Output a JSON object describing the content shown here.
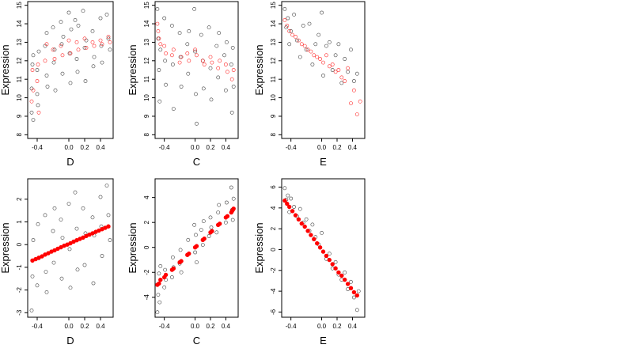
{
  "chart_data": [
    {
      "type": "scatter",
      "xlabel": "D",
      "ylabel": "Expression",
      "xlim": [
        -0.52,
        0.56
      ],
      "ylim": [
        7.8,
        15.2
      ],
      "xticks": [
        -0.4,
        0,
        0.2,
        0.4
      ],
      "xtick_labels": [
        "-0.4",
        "0.0",
        "0.2",
        "0.4"
      ],
      "yticks": [
        8,
        9,
        10,
        11,
        12,
        13,
        14,
        15
      ],
      "ytick_labels": [
        "8",
        "9",
        "10",
        "11",
        "12",
        "13",
        "14",
        "15"
      ],
      "series": [
        {
          "color": "#000000",
          "marker": "open-circle",
          "x": [
            -0.47,
            -0.47,
            -0.46,
            -0.45,
            -0.45,
            -0.4,
            -0.4,
            -0.39,
            -0.38,
            -0.3,
            -0.28,
            -0.28,
            -0.27,
            -0.2,
            -0.19,
            -0.18,
            -0.17,
            -0.1,
            -0.09,
            -0.08,
            -0.07,
            0,
            0.01,
            0.02,
            0.03,
            0.08,
            0.1,
            0.11,
            0.12,
            0.18,
            0.2,
            0.21,
            0.22,
            0.3,
            0.31,
            0.32,
            0.4,
            0.41,
            0.42,
            0.48,
            0.5,
            0.52
          ],
          "y": [
            9.2,
            10.5,
            11.8,
            8.8,
            12.3,
            10.2,
            11.5,
            9.6,
            12.5,
            12.8,
            11.2,
            13.5,
            10.6,
            13.8,
            11.9,
            12.6,
            10.4,
            14.1,
            12.9,
            11.3,
            13.3,
            14.6,
            12.4,
            10.8,
            13.7,
            14.2,
            12.1,
            11.4,
            13.9,
            14.7,
            12.7,
            10.9,
            13.1,
            13.6,
            11.7,
            12.2,
            14.3,
            12.8,
            11.9,
            14.5,
            13.2,
            12.6
          ]
        },
        {
          "color": "#ff0000",
          "marker": "open-circle",
          "x": [
            -0.47,
            -0.46,
            -0.45,
            -0.4,
            -0.39,
            -0.38,
            -0.3,
            -0.28,
            -0.2,
            -0.18,
            -0.1,
            -0.08,
            0,
            0.02,
            0.1,
            0.12,
            0.2,
            0.22,
            0.3,
            0.32,
            0.4,
            0.42,
            0.5,
            0.52
          ],
          "y": [
            9.8,
            11.5,
            10.4,
            10.9,
            11.8,
            9.2,
            12.0,
            12.9,
            12.6,
            12.1,
            12.8,
            12.3,
            13.1,
            12.4,
            13.0,
            12.6,
            13.2,
            12.7,
            13.0,
            12.8,
            13.1,
            12.9,
            13.3,
            13.0
          ]
        }
      ]
    },
    {
      "type": "scatter",
      "xlabel": "C",
      "ylabel": "Expression",
      "xlim": [
        -0.52,
        0.56
      ],
      "ylim": [
        7.8,
        15.2
      ],
      "xticks": [
        -0.4,
        0,
        0.2,
        0.4
      ],
      "xtick_labels": [
        "-0.4",
        "0.0",
        "0.2",
        "0.4"
      ],
      "yticks": [
        8,
        9,
        10,
        11,
        12,
        13,
        14,
        15
      ],
      "ytick_labels": [
        "8",
        "9",
        "10",
        "11",
        "12",
        "13",
        "14",
        "15"
      ],
      "series": [
        {
          "color": "#000000",
          "marker": "open-circle",
          "x": [
            -0.49,
            -0.48,
            -0.47,
            -0.46,
            -0.45,
            -0.4,
            -0.39,
            -0.38,
            -0.3,
            -0.29,
            -0.28,
            -0.2,
            -0.19,
            -0.18,
            -0.1,
            -0.09,
            -0.08,
            -0.01,
            0,
            0.01,
            0.02,
            0.08,
            0.1,
            0.11,
            0.18,
            0.2,
            0.21,
            0.28,
            0.3,
            0.31,
            0.38,
            0.4,
            0.41,
            0.47,
            0.48,
            0.49,
            0.5
          ],
          "y": [
            14.8,
            13.2,
            11.5,
            9.8,
            12.6,
            14.3,
            12.0,
            10.7,
            13.9,
            11.8,
            9.4,
            13.5,
            12.2,
            10.6,
            12.9,
            11.3,
            13.6,
            14.8,
            12.5,
            10.2,
            8.6,
            13.4,
            12.0,
            10.5,
            13.8,
            11.6,
            9.9,
            12.8,
            11.1,
            13.5,
            12.3,
            10.4,
            13.0,
            11.8,
            9.2,
            12.7,
            10.6
          ]
        },
        {
          "color": "#ff0000",
          "marker": "open-circle",
          "x": [
            -0.49,
            -0.48,
            -0.47,
            -0.45,
            -0.4,
            -0.38,
            -0.3,
            -0.28,
            -0.2,
            -0.18,
            -0.1,
            -0.08,
            0,
            0.02,
            0.1,
            0.12,
            0.2,
            0.22,
            0.3,
            0.32,
            0.4,
            0.42,
            0.48,
            0.5
          ],
          "y": [
            14.0,
            13.6,
            13.2,
            12.9,
            12.8,
            12.4,
            12.3,
            12.6,
            11.9,
            12.2,
            12.4,
            12.0,
            12.6,
            12.3,
            12.0,
            11.8,
            12.2,
            11.9,
            11.6,
            12.0,
            11.8,
            11.4,
            11.0,
            11.5
          ]
        }
      ]
    },
    {
      "type": "scatter",
      "xlabel": "E",
      "ylabel": "Expression",
      "xlim": [
        -0.52,
        0.56
      ],
      "ylim": [
        7.8,
        15.2
      ],
      "xticks": [
        -0.4,
        0,
        0.2,
        0.4
      ],
      "xtick_labels": [
        "-0.4",
        "0.0",
        "0.2",
        "0.4"
      ],
      "yticks": [
        8,
        9,
        10,
        11,
        12,
        13,
        14,
        15
      ],
      "ytick_labels": [
        "8",
        "9",
        "10",
        "11",
        "12",
        "13",
        "14",
        "15"
      ],
      "series": [
        {
          "color": "#000000",
          "marker": "open-circle",
          "x": [
            -0.48,
            -0.46,
            -0.44,
            -0.42,
            -0.4,
            -0.36,
            -0.32,
            -0.28,
            -0.24,
            -0.2,
            -0.16,
            -0.12,
            -0.08,
            -0.04,
            0,
            0.02,
            0.06,
            0.1,
            0.14,
            0.18,
            0.22,
            0.26,
            0.3,
            0.34,
            0.38,
            0.42,
            0.46
          ],
          "y": [
            14.8,
            13.8,
            14.3,
            12.9,
            13.6,
            14.5,
            13.1,
            12.2,
            13.9,
            12.6,
            14.0,
            11.8,
            12.9,
            13.4,
            14.6,
            11.2,
            12.8,
            13.0,
            11.5,
            12.3,
            12.9,
            10.8,
            12.1,
            11.4,
            12.6,
            10.9,
            11.3
          ]
        },
        {
          "color": "#ff0000",
          "marker": "open-circle",
          "x": [
            -0.48,
            -0.45,
            -0.42,
            -0.38,
            -0.34,
            -0.3,
            -0.26,
            -0.22,
            -0.18,
            -0.14,
            -0.1,
            -0.06,
            -0.02,
            0.02,
            0.06,
            0.1,
            0.14,
            0.18,
            0.22,
            0.26,
            0.3,
            0.34,
            0.38,
            0.42,
            0.46,
            0.5
          ],
          "y": [
            14.2,
            13.9,
            13.6,
            13.4,
            13.3,
            13.1,
            12.9,
            12.8,
            12.6,
            12.5,
            12.3,
            12.2,
            12.1,
            11.9,
            12.3,
            11.7,
            11.8,
            11.4,
            11.5,
            11.1,
            10.9,
            11.6,
            9.7,
            10.4,
            9.1,
            9.8
          ]
        }
      ]
    },
    {
      "type": "scatter",
      "xlabel": "D",
      "ylabel": "Expression",
      "xlim": [
        -0.52,
        0.56
      ],
      "ylim": [
        -3.2,
        2.9
      ],
      "xticks": [
        -0.4,
        0,
        0.2,
        0.4
      ],
      "xtick_labels": [
        "-0.4",
        "0.0",
        "0.2",
        "0.4"
      ],
      "yticks": [
        -3,
        -2,
        -1,
        0,
        1,
        2
      ],
      "ytick_labels": [
        "-3",
        "-2",
        "-1",
        "0",
        "1",
        "2"
      ],
      "series": [
        {
          "color": "#000000",
          "marker": "open-circle",
          "x": [
            -0.47,
            -0.46,
            -0.45,
            -0.4,
            -0.39,
            -0.38,
            -0.3,
            -0.29,
            -0.28,
            -0.2,
            -0.19,
            -0.18,
            -0.1,
            -0.09,
            -0.08,
            0,
            0.01,
            0.02,
            0.08,
            0.1,
            0.11,
            0.18,
            0.2,
            0.21,
            0.3,
            0.31,
            0.32,
            0.4,
            0.41,
            0.42,
            0.48,
            0.5,
            0.52
          ],
          "y": [
            -2.9,
            -1.4,
            0.2,
            -1.8,
            0.9,
            -0.6,
            1.3,
            -1.2,
            -2.1,
            0.6,
            -0.8,
            1.6,
            1.1,
            -1.5,
            0.3,
            1.8,
            -0.2,
            -1.9,
            2.3,
            0.7,
            -1.1,
            1.6,
            -0.9,
            0.5,
            1.2,
            -1.7,
            0.4,
            2.1,
            0.8,
            -0.5,
            2.6,
            1.3,
            0.2
          ]
        },
        {
          "color": "#ff0000",
          "marker": "filled-circle",
          "x": [
            -0.46,
            -0.42,
            -0.38,
            -0.34,
            -0.3,
            -0.26,
            -0.22,
            -0.18,
            -0.14,
            -0.1,
            -0.06,
            -0.02,
            0.02,
            0.06,
            0.1,
            0.14,
            0.18,
            0.22,
            0.26,
            0.3,
            0.34,
            0.38,
            0.42,
            0.46,
            0.5
          ],
          "y": [
            -0.7,
            -0.64,
            -0.58,
            -0.52,
            -0.44,
            -0.38,
            -0.31,
            -0.25,
            -0.18,
            -0.12,
            -0.05,
            0.0,
            0.06,
            0.13,
            0.19,
            0.25,
            0.31,
            0.38,
            0.44,
            0.5,
            0.56,
            0.62,
            0.68,
            0.74,
            0.8
          ]
        }
      ]
    },
    {
      "type": "scatter",
      "xlabel": "C",
      "ylabel": "Expression",
      "xlim": [
        -0.52,
        0.56
      ],
      "ylim": [
        -5.6,
        5.5
      ],
      "xticks": [
        -0.4,
        0,
        0.2,
        0.4
      ],
      "xtick_labels": [
        "-0.4",
        "0.0",
        "0.2",
        "0.4"
      ],
      "yticks": [
        -4,
        -2,
        0,
        2,
        4
      ],
      "ytick_labels": [
        "-4",
        "-2",
        "0",
        "2",
        "4"
      ],
      "series": [
        {
          "color": "#000000",
          "marker": "open-circle",
          "x": [
            -0.49,
            -0.48,
            -0.47,
            -0.46,
            -0.45,
            -0.4,
            -0.39,
            -0.38,
            -0.3,
            -0.29,
            -0.28,
            -0.2,
            -0.19,
            -0.18,
            -0.1,
            -0.09,
            -0.01,
            0,
            0.01,
            0.02,
            0.08,
            0.1,
            0.11,
            0.18,
            0.2,
            0.21,
            0.28,
            0.3,
            0.31,
            0.4,
            0.41,
            0.47,
            0.48,
            0.49,
            0.5
          ],
          "y": [
            -5.2,
            -3.8,
            -2.1,
            -4.4,
            -1.5,
            -3.2,
            -1.8,
            -2.6,
            -2.4,
            -0.8,
            -1.6,
            -1.3,
            -0.2,
            -2.0,
            -0.6,
            0.6,
            1.8,
            -0.4,
            1.0,
            -1.2,
            1.4,
            0.2,
            2.1,
            0.9,
            2.4,
            1.6,
            1.2,
            2.8,
            3.4,
            2.0,
            3.6,
            4.8,
            3.0,
            2.2,
            3.9
          ]
        },
        {
          "color": "#ff0000",
          "marker": "filled-circle",
          "x": [
            -0.49,
            -0.47,
            -0.45,
            -0.4,
            -0.38,
            -0.3,
            -0.28,
            -0.2,
            -0.18,
            -0.1,
            -0.08,
            0,
            0.02,
            0.1,
            0.12,
            0.2,
            0.22,
            0.3,
            0.32,
            0.4,
            0.42,
            0.47,
            0.48,
            0.49,
            0.5
          ],
          "y": [
            -3.0,
            -2.9,
            -2.6,
            -2.4,
            -2.2,
            -1.8,
            -1.7,
            -1.2,
            -1.1,
            -0.6,
            -0.5,
            0.0,
            0.1,
            0.6,
            0.7,
            1.2,
            1.3,
            1.8,
            1.9,
            2.4,
            2.5,
            2.8,
            2.9,
            3.0,
            3.1
          ]
        }
      ]
    },
    {
      "type": "scatter",
      "xlabel": "E",
      "ylabel": "Expression",
      "xlim": [
        -0.52,
        0.56
      ],
      "ylim": [
        -6.5,
        6.8
      ],
      "xticks": [
        -0.4,
        0,
        0.2,
        0.4
      ],
      "xtick_labels": [
        "-0.4",
        "0.0",
        "0.2",
        "0.4"
      ],
      "yticks": [
        -6,
        -4,
        -2,
        0,
        2,
        4,
        6
      ],
      "ytick_labels": [
        "-6",
        "-4",
        "-2",
        "0",
        "2",
        "4",
        "6"
      ],
      "series": [
        {
          "color": "#000000",
          "marker": "open-circle",
          "x": [
            -0.48,
            -0.46,
            -0.44,
            -0.42,
            -0.4,
            -0.36,
            -0.32,
            -0.28,
            -0.24,
            -0.2,
            -0.16,
            -0.12,
            -0.08,
            -0.04,
            0,
            0.02,
            0.06,
            0.1,
            0.14,
            0.18,
            0.22,
            0.26,
            0.3,
            0.34,
            0.38,
            0.42,
            0.46,
            0.48
          ],
          "y": [
            5.9,
            4.8,
            5.2,
            3.6,
            4.9,
            4.1,
            3.2,
            3.9,
            2.6,
            2.9,
            1.8,
            2.4,
            1.2,
            0.5,
            1.6,
            -0.2,
            -0.9,
            -0.4,
            -1.8,
            -1.2,
            -2.4,
            -2.9,
            -2.2,
            -3.8,
            -3.1,
            -4.6,
            -5.8,
            -4.0
          ]
        },
        {
          "color": "#ff0000",
          "marker": "filled-circle",
          "x": [
            -0.48,
            -0.45,
            -0.42,
            -0.38,
            -0.34,
            -0.3,
            -0.26,
            -0.22,
            -0.18,
            -0.14,
            -0.1,
            -0.06,
            -0.02,
            0.02,
            0.06,
            0.1,
            0.14,
            0.18,
            0.22,
            0.26,
            0.3,
            0.34,
            0.38,
            0.42,
            0.46
          ],
          "y": [
            4.7,
            4.4,
            4.1,
            3.7,
            3.3,
            2.9,
            2.5,
            2.2,
            1.8,
            1.4,
            1.0,
            0.6,
            0.2,
            -0.2,
            -0.6,
            -1.0,
            -1.4,
            -1.8,
            -2.2,
            -2.5,
            -2.9,
            -3.3,
            -3.7,
            -4.1,
            -4.4
          ]
        }
      ]
    }
  ]
}
